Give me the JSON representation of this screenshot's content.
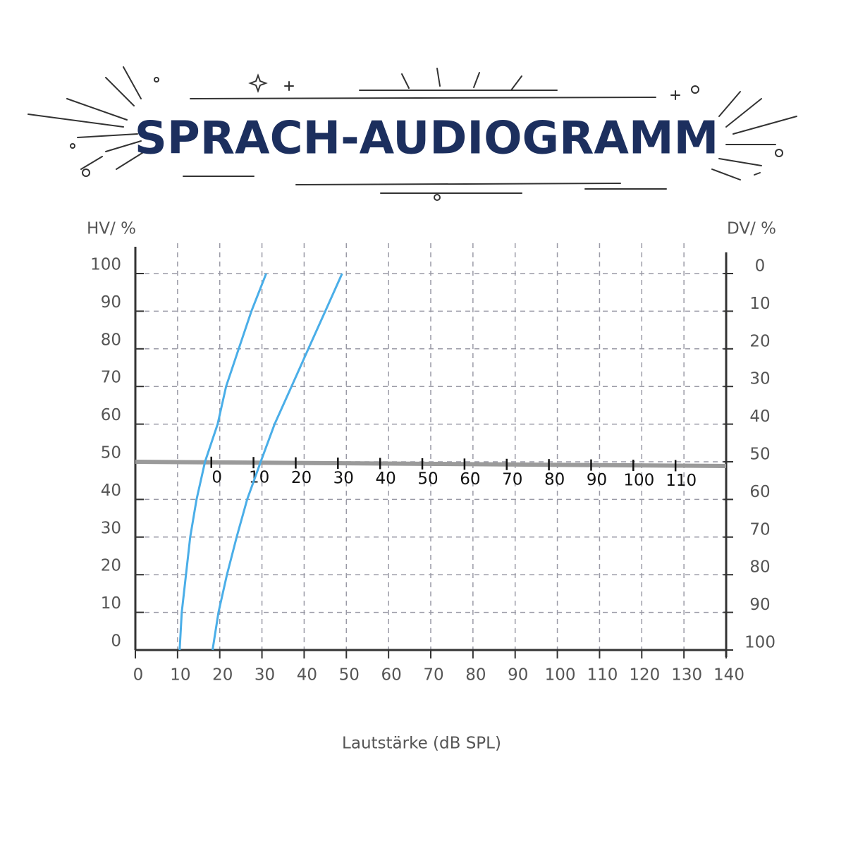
{
  "chart_data": {
    "type": "line",
    "title": "SPRACH-AUDIOGRAMM",
    "y_label": "HV/ %",
    "y2_label": "DV/ %",
    "x_label": "Lautstärke (dB SPL)",
    "xlim": [
      0,
      140
    ],
    "xticks": [
      0,
      10,
      20,
      30,
      40,
      50,
      60,
      70,
      80,
      90,
      100,
      110,
      120,
      130,
      140
    ],
    "ylim": [
      0,
      100
    ],
    "yticks": [
      0,
      10,
      20,
      30,
      40,
      50,
      60,
      70,
      80,
      90,
      100
    ],
    "y2lim": [
      100,
      0
    ],
    "y2ticks": [
      0,
      10,
      20,
      30,
      40,
      50,
      60,
      70,
      80,
      90,
      100
    ],
    "x2lim": [
      -18,
      122
    ],
    "x2ticks": [
      0,
      10,
      20,
      30,
      40,
      50,
      60,
      70,
      80,
      90,
      100,
      110
    ],
    "x2_axis_at": 50,
    "grid": true,
    "series": [
      {
        "color": "#4aaee8",
        "x": [
          10.5,
          11,
          12,
          13,
          14.5,
          16.5,
          19.5,
          21.5,
          24.5,
          27.5,
          31
        ],
        "values": [
          0,
          10,
          20,
          30,
          40,
          50,
          60,
          70,
          80,
          90,
          100
        ]
      },
      {
        "color": "#4aaee8",
        "x": [
          18.3,
          19.7,
          21.7,
          24,
          26.5,
          29.7,
          33,
          37,
          41,
          45,
          49
        ],
        "values": [
          0,
          10,
          20,
          30,
          40,
          50,
          60,
          70,
          80,
          90,
          100
        ]
      }
    ]
  }
}
